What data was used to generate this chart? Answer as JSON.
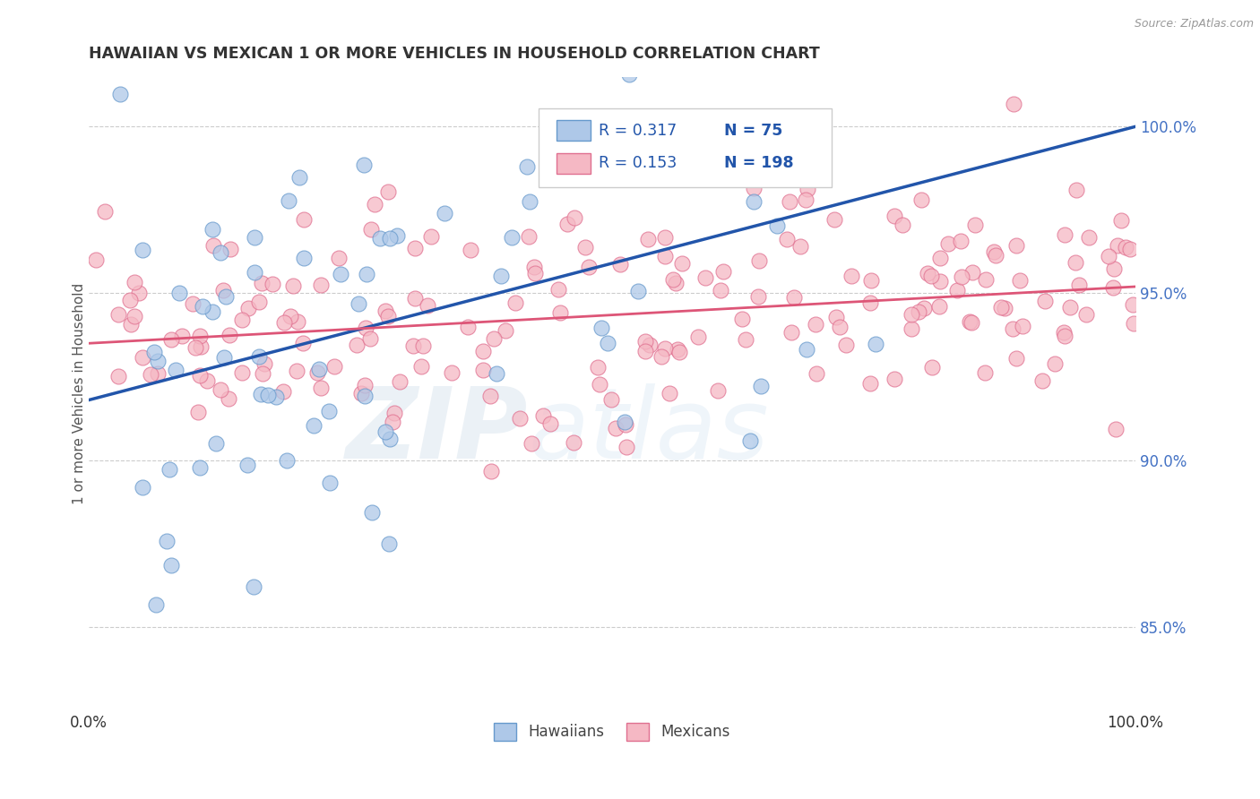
{
  "title": "HAWAIIAN VS MEXICAN 1 OR MORE VEHICLES IN HOUSEHOLD CORRELATION CHART",
  "source": "Source: ZipAtlas.com",
  "ylabel": "1 or more Vehicles in Household",
  "legend_hawaiians": "Hawaiians",
  "legend_mexicans": "Mexicans",
  "legend_r_hawaiian": "0.317",
  "legend_n_hawaiian": "75",
  "legend_r_mexican": "0.153",
  "legend_n_mexican": "198",
  "hawaiian_fill_color": "#aec8e8",
  "hawaiian_edge_color": "#6699cc",
  "hawaiian_line_color": "#2255aa",
  "mexican_fill_color": "#f5b8c4",
  "mexican_edge_color": "#e07090",
  "mexican_line_color": "#dd5577",
  "r_color": "#2255aa",
  "n_color": "#2255aa",
  "ytick_color": "#4472C4",
  "background_color": "#ffffff",
  "grid_color": "#cccccc",
  "title_color": "#333333",
  "xlim": [
    0.0,
    100.0
  ],
  "ylim": [
    82.5,
    101.5
  ],
  "yticks": [
    85.0,
    90.0,
    95.0,
    100.0
  ],
  "ytick_labels": [
    "85.0%",
    "90.0%",
    "95.0%",
    "100.0%"
  ],
  "blue_line_x0": 0.0,
  "blue_line_y0": 91.8,
  "blue_line_x1": 100.0,
  "blue_line_y1": 100.0,
  "pink_line_x0": 0.0,
  "pink_line_y0": 93.5,
  "pink_line_x1": 100.0,
  "pink_line_y1": 95.2,
  "hawaiian_N": 75,
  "mexican_N": 198,
  "seed": 99
}
